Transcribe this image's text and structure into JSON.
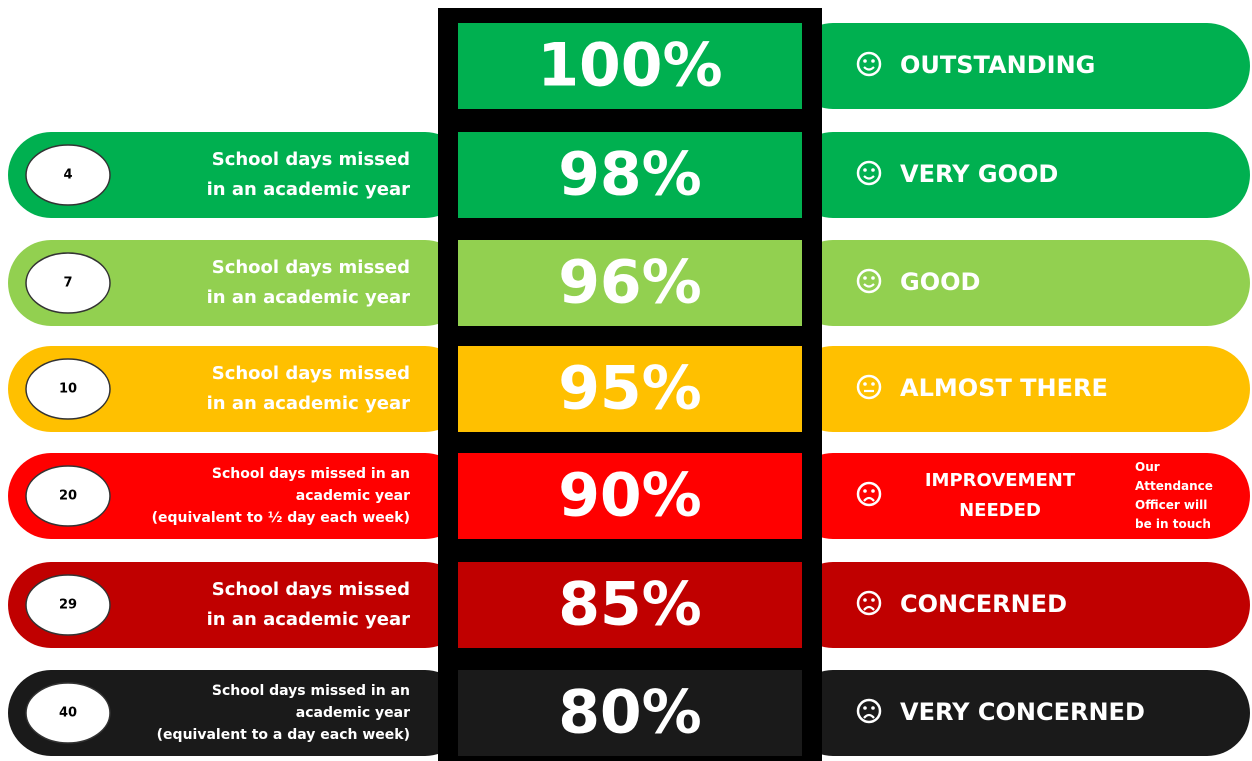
{
  "rows": [
    {
      "attendance": "100%",
      "status": [
        "OUTSTANDING"
      ],
      "color": "#00b050"
    },
    {
      "attendance": "98%",
      "days": 4,
      "description": [
        "School days missed",
        "in an academic year"
      ],
      "status": [
        "VERY GOOD"
      ],
      "color": "#00b050"
    },
    {
      "attendance": "96%",
      "days": 7,
      "description": [
        "School days missed",
        "in an academic year"
      ],
      "status": [
        "GOOD"
      ],
      "color": "#92d050"
    },
    {
      "attendance": "95%",
      "days": 10,
      "description": [
        "School days missed",
        "in an academic year"
      ],
      "status": [
        "ALMOST THERE"
      ],
      "color": "#ffc000"
    },
    {
      "attendance": "90%",
      "days": 20,
      "description": [
        "School days missed in an",
        "academic year",
        "(equivalent to ½ day each week)"
      ],
      "status": [
        "IMPROVEMENT",
        "NEEDED"
      ],
      "note": [
        "Our",
        "Attendance",
        "Officer will",
        "be in touch"
      ],
      "color": "#ff0000"
    },
    {
      "attendance": "85%",
      "days": 29,
      "description": [
        "School days missed",
        "in an academic year"
      ],
      "status": [
        "CONCERNED"
      ],
      "color": "#c00000"
    },
    {
      "attendance": "80%",
      "days": 40,
      "description": [
        "School days missed in an",
        "academic year",
        "(equivalent to a day each week)"
      ],
      "status": [
        "VERY CONCERNED"
      ],
      "color": "#1a1a1a"
    }
  ]
}
